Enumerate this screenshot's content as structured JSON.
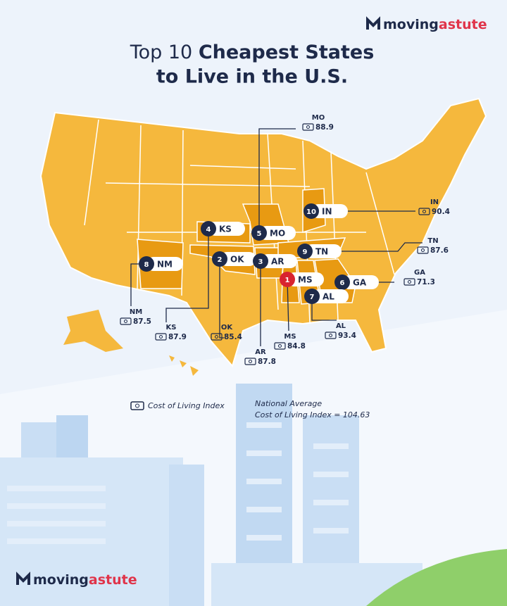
{
  "brand_top": {
    "part1": "moving",
    "part2": "astute"
  },
  "title": {
    "line1_regular": "Top 10",
    "line1_bold": "Cheapest States",
    "line2": "to Live in the U.S."
  },
  "states": [
    {
      "rank": 1,
      "abbr": "MS",
      "value": 84.8
    },
    {
      "rank": 2,
      "abbr": "OK",
      "value": 85.4
    },
    {
      "rank": 3,
      "abbr": "AR",
      "value": 87.8
    },
    {
      "rank": 4,
      "abbr": "KS",
      "value": 87.9
    },
    {
      "rank": 5,
      "abbr": "MO",
      "value": 88.9
    },
    {
      "rank": 6,
      "abbr": "GA",
      "value": 71.3
    },
    {
      "rank": 7,
      "abbr": "AL",
      "value": 93.4
    },
    {
      "rank": 8,
      "abbr": "NM",
      "value": 87.5
    },
    {
      "rank": 9,
      "abbr": "TN",
      "value": 87.6
    },
    {
      "rank": 10,
      "abbr": "IN",
      "value": 90.4
    }
  ],
  "legend": {
    "label": "Cost of Living Index"
  },
  "note": {
    "line1": "National Average",
    "line2": "Cost of Living Index = 104.63"
  },
  "brand_bottom": {
    "part1": "moving",
    "part2": "astute"
  }
}
